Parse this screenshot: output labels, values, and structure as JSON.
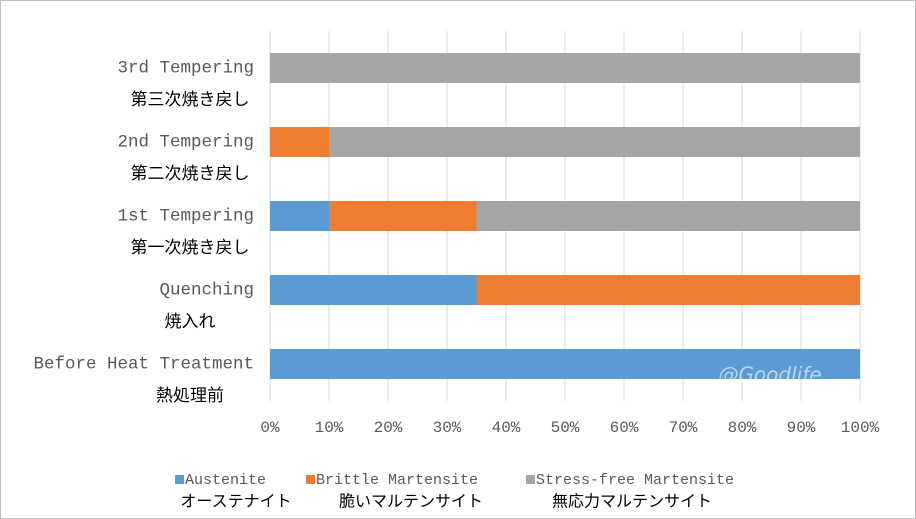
{
  "chart_data": {
    "type": "stacked-bar-horizontal",
    "categories": [
      "3rd Tempering",
      "2nd Tempering",
      "1st Tempering",
      "Quenching",
      "Before Heat Treatment"
    ],
    "categories_ja": [
      "第三次焼き戻し",
      "第二次焼き戻し",
      "第一次焼き戻し",
      "焼入れ",
      "熱処理前"
    ],
    "series": [
      {
        "name": "Austenite",
        "name_ja": "オーステナイト",
        "color": "#5b9bd5",
        "values": [
          0,
          0,
          10,
          35,
          100
        ]
      },
      {
        "name": "Brittle Martensite",
        "name_ja": "脆いマルテンサイト",
        "color": "#ed7d31",
        "values": [
          0,
          10,
          25,
          65,
          0
        ]
      },
      {
        "name": "Stress-free Martensite",
        "name_ja": "無応力マルテンサイト",
        "color": "#a5a5a5",
        "values": [
          100,
          90,
          65,
          0,
          0
        ]
      }
    ],
    "xlim": [
      0,
      100
    ],
    "xticks": [
      {
        "value": 0,
        "label": "0%"
      },
      {
        "value": 10,
        "label": "10%"
      },
      {
        "value": 20,
        "label": "20%"
      },
      {
        "value": 30,
        "label": "30%"
      },
      {
        "value": 40,
        "label": "40%"
      },
      {
        "value": 50,
        "label": "50%"
      },
      {
        "value": 60,
        "label": "60%"
      },
      {
        "value": 70,
        "label": "70%"
      },
      {
        "value": 80,
        "label": "80%"
      },
      {
        "value": 90,
        "label": "90%"
      },
      {
        "value": 100,
        "label": "100%"
      }
    ],
    "grid": true,
    "legend": "bottom",
    "watermark": "@Goodlife"
  }
}
